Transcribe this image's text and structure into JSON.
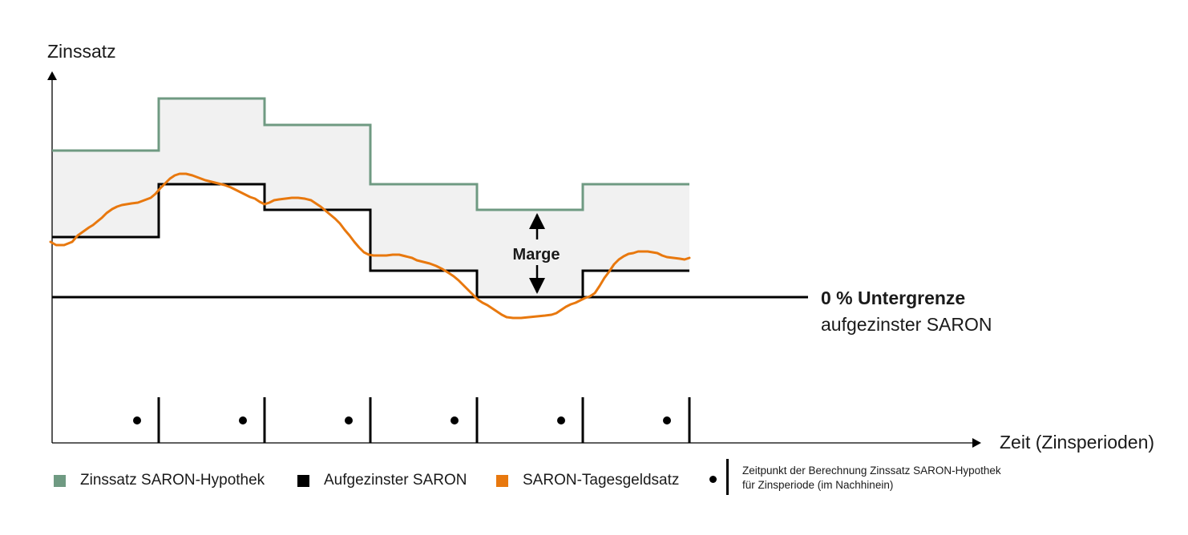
{
  "labels": {
    "y_axis": "Zinssatz",
    "x_axis": "Zeit (Zinsperioden)",
    "margin": "Marge",
    "floor_bold": "0 % Untergrenze",
    "floor_sub": "aufgezinster SARON"
  },
  "legend": [
    {
      "label": "Zinssatz SARON-Hypothek",
      "color": "#6f9a82",
      "icon": "green-square"
    },
    {
      "label": "Aufgezinster SARON",
      "color": "#000000",
      "icon": "black-square"
    },
    {
      "label": "SARON-Tagesgeldsatz",
      "color": "#e8780e",
      "icon": "orange-square"
    }
  ],
  "legend_note": {
    "text": "Zeitpunkt der Berechnung Zinssatz SARON-Hypothek für Zinsperiode (im Nachhinein)",
    "icons": [
      "dot-icon",
      "period-tick-icon"
    ]
  },
  "colors": {
    "mortgage": "#6f9a82",
    "saron_compounded": "#000000",
    "saron_daily": "#e8780e",
    "margin_band": "#f1f1f1",
    "axis": "#000000"
  }
}
